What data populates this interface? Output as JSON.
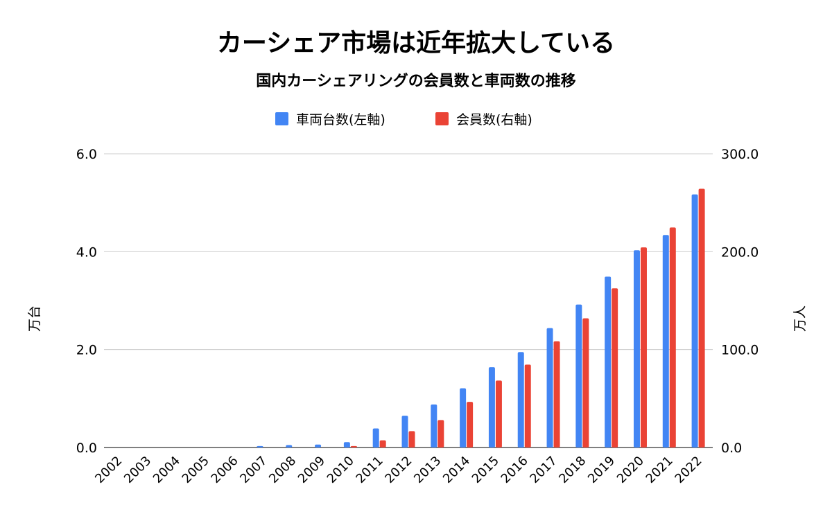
{
  "chart_data": {
    "type": "bar",
    "title": "カーシェア市場は近年拡大している",
    "subtitle": "国内カーシェアリングの会員数と車両数の推移",
    "categories": [
      "2002",
      "2003",
      "2004",
      "2005",
      "2006",
      "2007",
      "2008",
      "2009",
      "2010",
      "2011",
      "2012",
      "2013",
      "2014",
      "2015",
      "2016",
      "2017",
      "2018",
      "2019",
      "2020",
      "2021",
      "2022"
    ],
    "series": [
      {
        "name": "車両台数(左軸)",
        "axis": "left",
        "color": "#4285f4",
        "values": [
          0.0,
          0.0,
          0.0,
          0.0,
          0.0,
          0.03,
          0.05,
          0.06,
          0.11,
          0.39,
          0.65,
          0.88,
          1.21,
          1.64,
          1.95,
          2.44,
          2.92,
          3.49,
          4.03,
          4.34,
          5.17
        ]
      },
      {
        "name": "会員数(右軸)",
        "axis": "right",
        "color": "#ea4335",
        "values": [
          0.0,
          0.0,
          0.0,
          0.0,
          0.0,
          0.0,
          0.0,
          0.0,
          1.5,
          7.3,
          16.7,
          28.0,
          46.6,
          68.4,
          84.6,
          108.5,
          132.0,
          162.6,
          204.4,
          224.7,
          264.3
        ]
      }
    ],
    "y_left": {
      "label": "万台",
      "min": 0,
      "max": 6,
      "ticks": [
        "0.0",
        "2.0",
        "4.0",
        "6.0"
      ]
    },
    "y_right": {
      "label": "万人",
      "min": 0,
      "max": 300,
      "ticks": [
        "0.0",
        "100.0",
        "200.0",
        "300.0"
      ]
    },
    "grid": true,
    "legend_position": "top-center"
  }
}
